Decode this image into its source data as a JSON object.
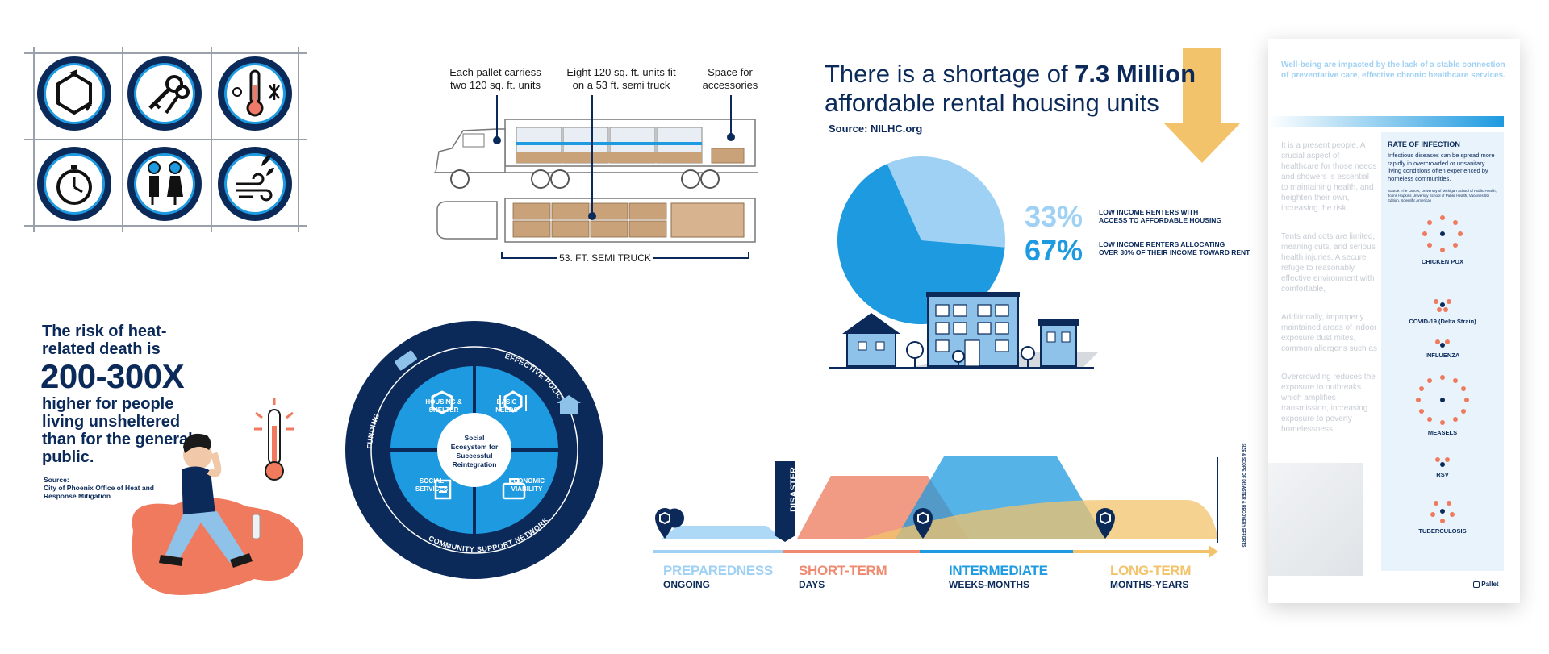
{
  "icon_grid": {
    "icons": [
      "recycle-arrows-icon",
      "keys-icon",
      "thermometer-sun-snow-icon",
      "stopwatch-icon",
      "people-icon",
      "wind-leaf-icon"
    ],
    "colors": {
      "ring": "#0b2a5a",
      "accent": "#1e9ae0"
    }
  },
  "truck": {
    "caption_pallet": "Each pallet carriess two 120 sq. ft. units",
    "caption_eight": "Eight 120 sq. ft. units fit on a 53 ft. semi truck",
    "caption_space": "Space for accessories",
    "dimension_label": "53. FT. SEMI TRUCK"
  },
  "heat": {
    "title": "The risk of heat-related death is",
    "big": "200-300X",
    "body": "higher for people living unsheltered than for the general  public.",
    "source_label": "Source:",
    "source_text": "City of Phoenix Office of Heat and Response Mitigation"
  },
  "ecosystem": {
    "center": "Social Ecosystem for Successful Reintegration",
    "quadrants": [
      "HOUSING & SHELTER",
      "BASIC NEEDS",
      "SOCIAL SERVICES",
      "ECONOMIC VIABILITY"
    ],
    "ring_top_left": "FUNDING",
    "ring_top_right": "EFFECTIVE POLICY",
    "ring_bottom": "COMMUNITY SUPPORT NETWORK"
  },
  "housing": {
    "title_prefix": "There is a shortage of ",
    "title_bold": "7.3 Million",
    "title_line2": "affordable rental housing units",
    "source": "Source: NILHC.org",
    "chart_data": {
      "type": "pie",
      "values": [
        33,
        67
      ],
      "categories": [
        "LOW INCOME RENTERS WITH ACCESS TO AFFORDABLE HOUSING",
        "LOW INCOME RENTERS ALLOCATING OVER 30% OF THEIR INCOME TOWARD RENT"
      ],
      "colors": [
        "#9fd1f4",
        "#1e9ae0"
      ]
    },
    "stat1_value": "33%",
    "stat1_line1": "LOW INCOME RENTERS WITH",
    "stat1_line2": "ACCESS TO AFFORDABLE HOUSING",
    "stat2_value": "67%",
    "stat2_line1": "LOW INCOME RENTERS ALLOCATING",
    "stat2_line2": "OVER 30% OF THEIR INCOME TOWARD RENT"
  },
  "timeline": {
    "disaster_label": "DISASTER",
    "side_label": "SIZE & SCOPE OF DISASTER & RECOVERY EFFORTS",
    "phases": [
      {
        "name": "PREPAREDNESS",
        "sub": "ONGOING",
        "color": "#9fd1f4"
      },
      {
        "name": "SHORT-TERM",
        "sub": "DAYS",
        "color": "#ef8a70"
      },
      {
        "name": "INTERMEDIATE",
        "sub": "WEEKS-MONTHS",
        "color": "#1e9ae0"
      },
      {
        "name": "LONG-TERM",
        "sub": "MONTHS-YEARS",
        "color": "#f2c36b"
      }
    ]
  },
  "document": {
    "heading": "Well-being are impacted by the lack of a stable connection of preventative care, effective chronic healthcare services.",
    "infection_title": "RATE OF INFECTION",
    "infection_body": "Infectious diseases can be spread more rapidly in overcrowded or unsanitary living conditions often experienced by homeless communities.",
    "infection_source": "Source: The Lancet, University of Michigan School of Public Health, Johns Hopkins University School of Public Health, Vaccines 5th Edition, Scientific American",
    "diseases": [
      "CHICKEN POX",
      "COVID-19 (Delta Strain)",
      "INFLUENZA",
      "MEASELS",
      "RSV",
      "TUBERCULOSIS"
    ],
    "faded_paragraphs": [
      "It is a present people. A crucial aspect of healthcare for those needs and showers is essential to maintaining health, and heighten their own, increasing the risk",
      "Tents and cots are limited, meaning cuts, and serious health injuries. A secure refuge to reasonably effective environment with comfortable,",
      "Additionally, improperly maintained areas of indoor exposure dust mites, common allergens such as",
      "Overcrowding reduces the exposure to outbreaks which amplifies transmission, increasing exposure to poverty homelessness."
    ],
    "brand": "Pallet"
  }
}
